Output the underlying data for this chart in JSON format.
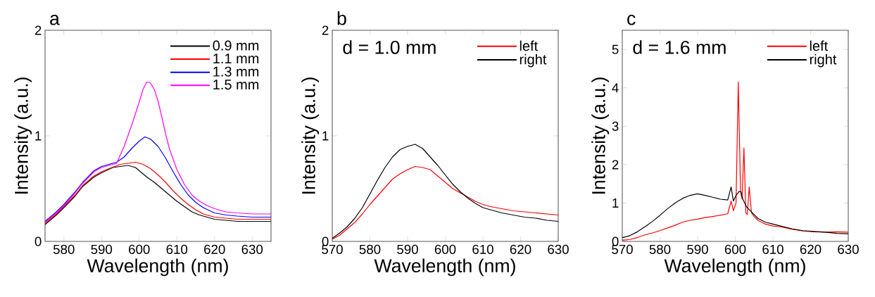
{
  "chart_data": [
    {
      "type": "line",
      "title": "a",
      "xlabel": "Wavelength (nm)",
      "ylabel": "Intensity (a.u.)",
      "xlim": [
        575,
        635
      ],
      "ylim": [
        0,
        2
      ],
      "xticks": [
        580,
        590,
        600,
        610,
        620,
        630
      ],
      "yticks": [
        0,
        1,
        2
      ],
      "legend": "top right",
      "series": [
        {
          "name": "0.9 mm",
          "color": "#000000",
          "x": [
            575,
            578,
            580,
            583,
            585,
            588,
            590,
            593,
            595,
            597,
            599,
            600,
            602,
            604,
            606,
            608,
            610,
            612,
            614,
            616,
            618,
            620,
            623,
            626,
            630,
            635
          ],
          "values": [
            0.16,
            0.25,
            0.32,
            0.43,
            0.52,
            0.61,
            0.65,
            0.7,
            0.71,
            0.72,
            0.7,
            0.67,
            0.61,
            0.56,
            0.5,
            0.44,
            0.38,
            0.33,
            0.28,
            0.25,
            0.23,
            0.21,
            0.2,
            0.19,
            0.19,
            0.19
          ]
        },
        {
          "name": "1.1 mm",
          "color": "#ff0000",
          "x": [
            575,
            578,
            580,
            583,
            585,
            588,
            590,
            592,
            595,
            597,
            599,
            601,
            603,
            605,
            607,
            609,
            611,
            613,
            615,
            617,
            620,
            623,
            626,
            630,
            635
          ],
          "values": [
            0.17,
            0.26,
            0.33,
            0.44,
            0.53,
            0.62,
            0.66,
            0.69,
            0.73,
            0.74,
            0.75,
            0.73,
            0.69,
            0.63,
            0.56,
            0.48,
            0.41,
            0.35,
            0.3,
            0.26,
            0.23,
            0.22,
            0.21,
            0.21,
            0.21
          ]
        },
        {
          "name": "1.3 mm",
          "color": "#0000ff",
          "x": [
            575,
            578,
            580,
            583,
            585,
            588,
            590,
            592,
            594,
            596,
            598,
            600,
            601.5,
            603,
            605,
            607,
            609,
            611,
            613,
            615,
            617,
            620,
            623,
            626,
            630,
            635
          ],
          "values": [
            0.19,
            0.28,
            0.35,
            0.47,
            0.56,
            0.67,
            0.71,
            0.73,
            0.75,
            0.8,
            0.88,
            0.95,
            0.99,
            0.97,
            0.9,
            0.79,
            0.66,
            0.54,
            0.44,
            0.37,
            0.32,
            0.27,
            0.25,
            0.24,
            0.23,
            0.23
          ]
        },
        {
          "name": "1.5 mm",
          "color": "#ff00ff",
          "x": [
            575,
            578,
            580,
            583,
            585,
            588,
            590,
            592,
            594,
            596,
            598,
            600,
            601,
            602,
            603,
            604,
            605,
            606,
            607,
            608,
            610,
            612,
            614,
            616,
            618,
            620,
            623,
            626,
            630,
            635
          ],
          "values": [
            0.18,
            0.27,
            0.34,
            0.46,
            0.55,
            0.66,
            0.7,
            0.72,
            0.74,
            0.9,
            1.1,
            1.32,
            1.44,
            1.51,
            1.5,
            1.44,
            1.33,
            1.18,
            1.02,
            0.88,
            0.68,
            0.54,
            0.44,
            0.38,
            0.34,
            0.31,
            0.28,
            0.27,
            0.26,
            0.26
          ]
        }
      ]
    },
    {
      "type": "line",
      "title": "b",
      "xlabel": "Wavelength (nm)",
      "ylabel": "Intensity (a.u.)",
      "xlim": [
        570,
        630
      ],
      "ylim": [
        0,
        2
      ],
      "xticks": [
        570,
        580,
        590,
        600,
        610,
        620,
        630
      ],
      "yticks": [
        0,
        1,
        2
      ],
      "legend": "top right",
      "annotations": [
        "d = 1.0 mm"
      ],
      "series": [
        {
          "name": "left",
          "color": "#ff0000",
          "x": [
            570,
            572,
            574,
            576,
            578,
            580,
            582,
            584,
            586,
            588,
            590,
            592,
            594,
            596,
            598,
            600,
            602,
            604,
            606,
            608,
            610,
            612,
            615,
            618,
            621,
            624,
            627,
            630
          ],
          "values": [
            0.02,
            0.06,
            0.12,
            0.18,
            0.26,
            0.35,
            0.43,
            0.51,
            0.59,
            0.64,
            0.68,
            0.71,
            0.7,
            0.68,
            0.62,
            0.56,
            0.5,
            0.46,
            0.42,
            0.38,
            0.35,
            0.33,
            0.31,
            0.29,
            0.28,
            0.27,
            0.26,
            0.25
          ]
        },
        {
          "name": "right",
          "color": "#000000",
          "x": [
            570,
            572,
            574,
            576,
            578,
            580,
            582,
            584,
            586,
            588,
            590,
            592,
            594,
            596,
            598,
            600,
            602,
            604,
            606,
            608,
            610,
            612,
            615,
            618,
            621,
            624,
            627,
            630
          ],
          "values": [
            0.03,
            0.08,
            0.14,
            0.22,
            0.32,
            0.45,
            0.58,
            0.7,
            0.8,
            0.87,
            0.9,
            0.92,
            0.88,
            0.8,
            0.72,
            0.63,
            0.54,
            0.47,
            0.41,
            0.36,
            0.32,
            0.3,
            0.27,
            0.25,
            0.23,
            0.22,
            0.2,
            0.19
          ]
        }
      ]
    },
    {
      "type": "line",
      "title": "c",
      "xlabel": "Wavelength (nm)",
      "ylabel": "Intensity (a.u.)",
      "xlim": [
        570,
        630
      ],
      "ylim": [
        0,
        5.5
      ],
      "xticks": [
        570,
        580,
        590,
        600,
        610,
        620,
        630
      ],
      "yticks": [
        0,
        1,
        2,
        3,
        4,
        5
      ],
      "legend": "top right",
      "annotations": [
        "d = 1.6 mm"
      ],
      "series": [
        {
          "name": "left",
          "color": "#ff0000",
          "x": [
            570,
            572,
            574,
            576,
            578,
            580,
            582,
            584,
            586,
            588,
            590,
            592,
            594,
            596,
            598,
            598.9,
            599.5,
            600.2,
            600.8,
            601.4,
            601.8,
            602.3,
            602.8,
            603.2,
            603.7,
            604.3,
            605,
            606,
            608,
            610,
            612,
            615,
            618,
            621,
            624,
            627,
            630
          ],
          "values": [
            0.03,
            0.05,
            0.1,
            0.17,
            0.22,
            0.28,
            0.35,
            0.42,
            0.5,
            0.55,
            0.58,
            0.62,
            0.65,
            0.68,
            0.72,
            1.05,
            0.8,
            1.0,
            4.15,
            1.3,
            1.1,
            2.43,
            0.75,
            0.7,
            1.42,
            0.75,
            0.65,
            0.55,
            0.45,
            0.4,
            0.38,
            0.32,
            0.27,
            0.25,
            0.24,
            0.25,
            0.24
          ]
        },
        {
          "name": "right",
          "color": "#000000",
          "x": [
            570,
            572,
            574,
            576,
            578,
            580,
            582,
            584,
            586,
            588,
            590,
            592,
            594,
            596,
            598,
            598.9,
            599.5,
            600.2,
            601,
            601.5,
            602,
            603,
            604,
            605,
            606,
            608,
            610,
            612,
            615,
            618,
            621,
            624,
            627,
            630
          ],
          "values": [
            0.1,
            0.15,
            0.25,
            0.38,
            0.52,
            0.68,
            0.85,
            1.0,
            1.12,
            1.2,
            1.24,
            1.2,
            1.15,
            1.1,
            1.08,
            1.42,
            1.05,
            1.2,
            1.3,
            1.3,
            1.1,
            0.9,
            0.8,
            0.7,
            0.6,
            0.5,
            0.45,
            0.4,
            0.33,
            0.28,
            0.26,
            0.24,
            0.21,
            0.2
          ]
        }
      ]
    }
  ]
}
